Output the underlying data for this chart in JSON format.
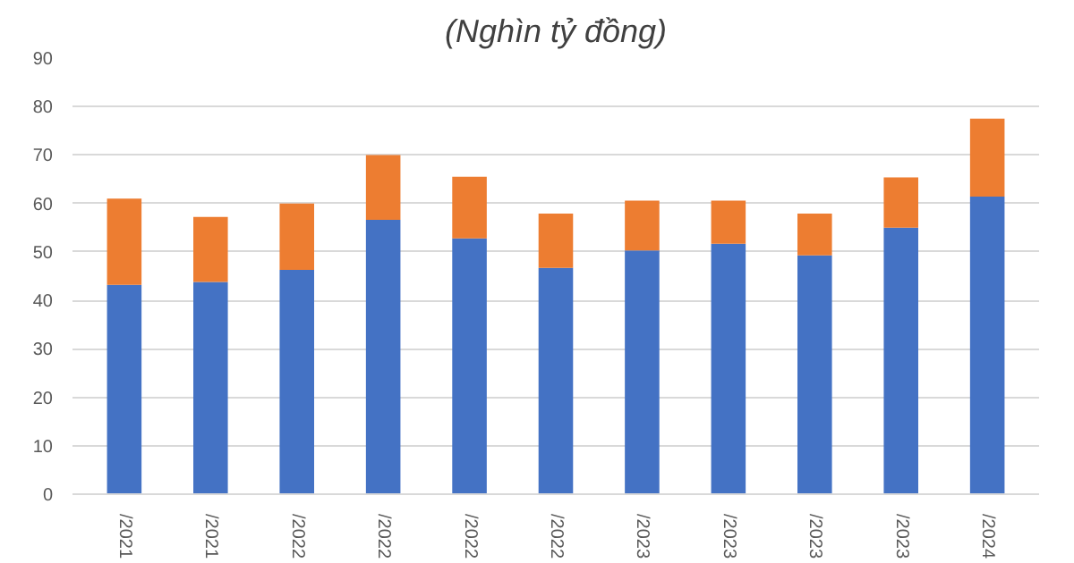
{
  "chart_data": {
    "type": "bar",
    "title": "(Nghìn tỷ đồng)",
    "stacked": true,
    "categories": [
      "/2021",
      "/2021",
      "/2022",
      "/2022",
      "/2022",
      "/2022",
      "/2023",
      "/2023",
      "/2023",
      "/2023",
      "/2024"
    ],
    "series": [
      {
        "color": "#4472c4",
        "values": [
          43.2,
          43.8,
          46.3,
          56.6,
          52.8,
          46.7,
          50.3,
          51.7,
          49.3,
          55.0,
          61.4
        ]
      },
      {
        "color": "#ed7d31",
        "values": [
          17.8,
          13.4,
          13.7,
          13.4,
          12.7,
          11.2,
          10.3,
          8.9,
          8.6,
          10.4,
          16.1
        ]
      }
    ],
    "ylim": [
      0,
      90
    ],
    "yticks": [
      0,
      10,
      20,
      30,
      40,
      50,
      60,
      70,
      80,
      90
    ],
    "grid": "y"
  }
}
